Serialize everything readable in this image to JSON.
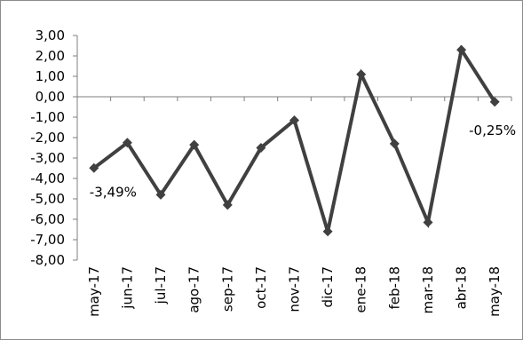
{
  "chart_data": {
    "type": "line",
    "categories": [
      "may-17",
      "jun-17",
      "jul-17",
      "ago-17",
      "sep-17",
      "oct-17",
      "nov-17",
      "dic-17",
      "ene-18",
      "feb-18",
      "mar-18",
      "abr-18",
      "may-18"
    ],
    "series": [
      {
        "values": [
          -3.49,
          -2.25,
          -4.8,
          -2.35,
          -5.3,
          -2.5,
          -1.15,
          -6.6,
          1.1,
          -2.3,
          -6.15,
          2.3,
          -0.25
        ],
        "color": "#404040",
        "marker": "diamond"
      }
    ],
    "yticks": [
      "3,00",
      "2,00",
      "1,00",
      "0,00",
      "-1,00",
      "-2,00",
      "-3,00",
      "-4,00",
      "-5,00",
      "-6,00",
      "-7,00",
      "-8,00"
    ],
    "ylim": [
      -8,
      3
    ],
    "annotations": [
      {
        "category": "may-17",
        "text": "-3,49%"
      },
      {
        "category": "may-18",
        "text": "-0,25%"
      }
    ],
    "grid": false,
    "legend": "none"
  }
}
